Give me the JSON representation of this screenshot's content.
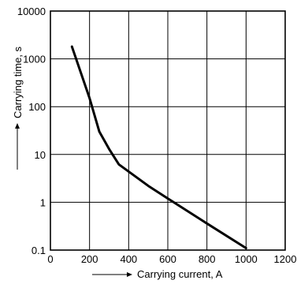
{
  "chart_data": {
    "type": "line",
    "title": "",
    "xlabel": "Carrying current, A",
    "ylabel": "Carrying time, s",
    "xlim": [
      0,
      1200
    ],
    "ylim": [
      0.1,
      10000
    ],
    "yscale": "log",
    "grid": true,
    "x_ticks": [
      "0",
      "200",
      "400",
      "600",
      "800",
      "1000",
      "1200"
    ],
    "y_ticks": [
      "10000",
      "1000",
      "100",
      "10",
      "1",
      "0.1"
    ],
    "series": [
      {
        "points": [
          {
            "x": 110,
            "y": 1800
          },
          {
            "x": 200,
            "y": 150
          },
          {
            "x": 250,
            "y": 30
          },
          {
            "x": 300,
            "y": 13
          },
          {
            "x": 350,
            "y": 6.2
          },
          {
            "x": 500,
            "y": 2.2
          },
          {
            "x": 600,
            "y": 1.2
          },
          {
            "x": 800,
            "y": 0.36
          },
          {
            "x": 1000,
            "y": 0.11
          }
        ]
      }
    ],
    "colors": {
      "line": "#000000",
      "grid": "#000000",
      "axis": "#000000"
    }
  }
}
